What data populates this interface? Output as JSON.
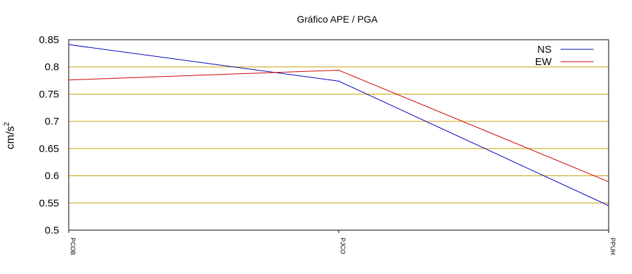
{
  "chart_data": {
    "type": "line",
    "title": "Gráfico  APE / PGA",
    "xlabel": "",
    "ylabel_base": "cm/s",
    "ylabel_sup": "2",
    "categories": [
      "PCOB",
      "PJCO",
      "PPUH"
    ],
    "ylim": [
      0.5,
      0.85
    ],
    "yticks": [
      "0.85",
      "0.8",
      "0.75",
      "0.7",
      "0.65",
      "0.6",
      "0.55",
      "0.5"
    ],
    "ytick_values": [
      0.85,
      0.8,
      0.75,
      0.7,
      0.65,
      0.6,
      0.55,
      0.5
    ],
    "grid": "horizontal",
    "grid_color": "#c8a000",
    "legend_position": "top-right",
    "series": [
      {
        "name": "NS",
        "color": "#0000c0",
        "values": [
          0.841,
          0.774,
          0.545
        ]
      },
      {
        "name": "EW",
        "color": "#cc0000",
        "values": [
          0.776,
          0.794,
          0.589
        ]
      }
    ]
  }
}
